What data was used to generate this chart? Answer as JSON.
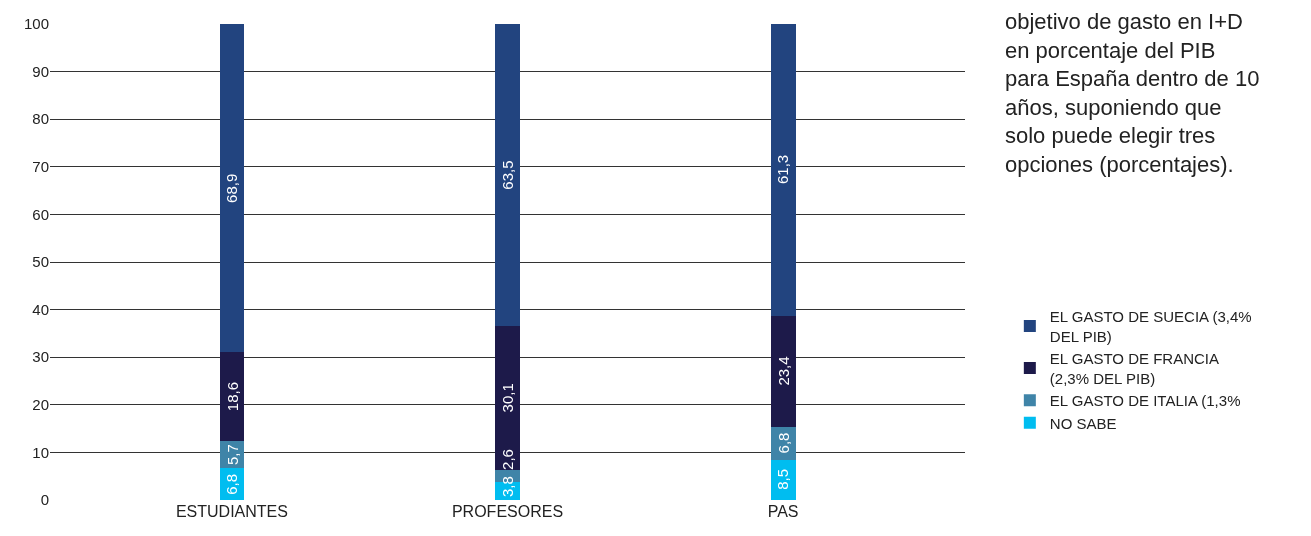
{
  "chart_data": {
    "type": "bar",
    "stacked": true,
    "title": "objetivo de gasto en I+D en porcentaje del PIB para España dentro de 10 años, suponiendo que solo puede elegir tres opciones (porcentajes).",
    "categories": [
      "ESTUDIANTES",
      "PROFESORES",
      "PAS"
    ],
    "series": [
      {
        "name": "NO SABE",
        "color": "#00bdf0",
        "values": [
          6.8,
          3.8,
          8.5
        ],
        "value_labels": [
          "6,8",
          "3,8",
          "8,5"
        ]
      },
      {
        "name": "EL GASTO DE ITALIA (1,3%",
        "color": "#3f84a8",
        "values": [
          5.7,
          2.6,
          6.8
        ],
        "value_labels": [
          "5,7",
          "2,6",
          "6,8"
        ]
      },
      {
        "name": "EL GASTO DE FRANCIA (2,3% DEL PIB)",
        "color": "#1d1a4a",
        "values": [
          18.6,
          30.1,
          23.4
        ],
        "value_labels": [
          "18,6",
          "30,1",
          "23,4"
        ]
      },
      {
        "name": "EL GASTO DE SUECIA (3,4% DEL PIB)",
        "color": "#22447f",
        "values": [
          68.9,
          63.5,
          61.3
        ],
        "value_labels": [
          "68,9",
          "63,5",
          "61,3"
        ]
      }
    ],
    "ylim": [
      0,
      100
    ],
    "yticks": [
      0,
      10,
      20,
      30,
      40,
      50,
      60,
      70,
      80,
      90,
      100
    ],
    "grid": "y",
    "legend": "right"
  }
}
